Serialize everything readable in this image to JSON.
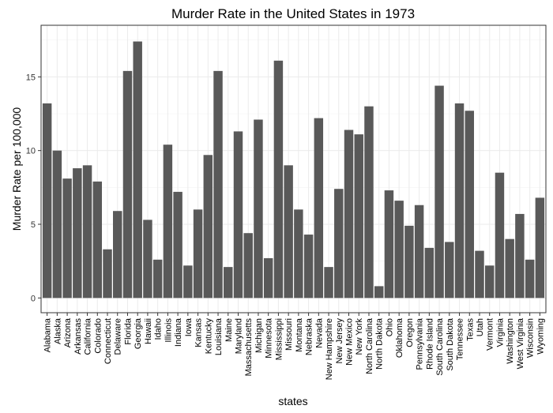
{
  "chart_data": {
    "type": "bar",
    "title": "Murder Rate in the United States in 1973",
    "xlabel": "states",
    "ylabel": "Murder Rate per 100,000",
    "ylim": [
      -1,
      18.5
    ],
    "yticks": [
      0,
      5,
      10,
      15
    ],
    "grid": true,
    "bar_color": "#595959",
    "panel_border_color": "#333333",
    "grid_color": "#ebebeb",
    "categories": [
      "Alabama",
      "Alaska",
      "Arizona",
      "Arkansas",
      "California",
      "Colorado",
      "Connecticut",
      "Delaware",
      "Florida",
      "Georgia",
      "Hawaii",
      "Idaho",
      "Illinois",
      "Indiana",
      "Iowa",
      "Kansas",
      "Kentucky",
      "Louisiana",
      "Maine",
      "Maryland",
      "Massachusetts",
      "Michigan",
      "Minnesota",
      "Mississippi",
      "Missouri",
      "Montana",
      "Nebraska",
      "Nevada",
      "New Hampshire",
      "New Jersey",
      "New Mexico",
      "New York",
      "North Carolina",
      "North Dakota",
      "Ohio",
      "Oklahoma",
      "Oregon",
      "Pennsylvania",
      "Rhode Island",
      "South Carolina",
      "South Dakota",
      "Tennessee",
      "Texas",
      "Utah",
      "Vermont",
      "Virginia",
      "Washington",
      "West Virginia",
      "Wisconsin",
      "Wyoming"
    ],
    "values": [
      13.2,
      10.0,
      8.1,
      8.8,
      9.0,
      7.9,
      3.3,
      5.9,
      15.4,
      17.4,
      5.3,
      2.6,
      10.4,
      7.2,
      2.2,
      6.0,
      9.7,
      15.4,
      2.1,
      11.3,
      4.4,
      12.1,
      2.7,
      16.1,
      9.0,
      6.0,
      4.3,
      12.2,
      2.1,
      7.4,
      11.4,
      11.1,
      13.0,
      0.8,
      7.3,
      6.6,
      4.9,
      6.3,
      3.4,
      14.4,
      3.8,
      13.2,
      12.7,
      3.2,
      2.2,
      8.5,
      4.0,
      5.7,
      2.6,
      6.8
    ]
  }
}
